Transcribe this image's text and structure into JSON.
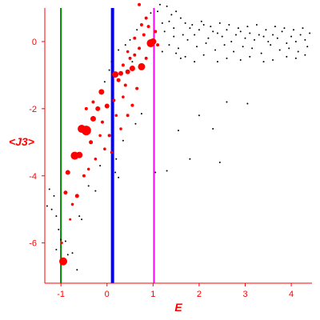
{
  "chart_data": {
    "type": "scatter",
    "title": "",
    "xlabel": "E",
    "ylabel": "<J3>",
    "xlim": [
      -1.35,
      4.45
    ],
    "ylim": [
      -7.2,
      1.0
    ],
    "x_ticks": [
      -1,
      0,
      1,
      2,
      3,
      4
    ],
    "x_tick_labels": [
      "-1",
      "0",
      "1",
      "2",
      "3",
      "4"
    ],
    "y_ticks": [
      0,
      -2,
      -4,
      -6
    ],
    "y_tick_labels": [
      "0",
      "-2",
      "-4",
      "-6"
    ],
    "grid": false,
    "colors": {
      "axis": "#ff0000",
      "labels": "#ff0000",
      "points_small": "#000000",
      "points_large": "#ff0000",
      "vline_green": "#008000",
      "vline_blue": "#0000ff",
      "vline_magenta": "#ff00ff"
    },
    "vertical_lines": [
      {
        "x": -1.0,
        "color": "#008000",
        "weight": "thin"
      },
      {
        "x": 0.12,
        "color": "#0000ff",
        "weight": "thick"
      },
      {
        "x": 1.02,
        "color": "#ff00ff",
        "weight": "thin"
      }
    ],
    "series": [
      {
        "color": "#ff0000",
        "marker": "circle",
        "points": [
          [
            -0.45,
            -2.65,
            6
          ],
          [
            -0.55,
            -2.6,
            5
          ],
          [
            -0.7,
            -3.4,
            5
          ],
          [
            -0.6,
            -3.38,
            4
          ],
          [
            -0.3,
            -2.3,
            3.5
          ],
          [
            -0.2,
            -2.0,
            3
          ],
          [
            -0.12,
            -1.5,
            3.5
          ],
          [
            0.0,
            -1.92,
            3
          ],
          [
            0.18,
            -0.98,
            4
          ],
          [
            0.3,
            -0.95,
            3
          ],
          [
            0.45,
            -0.9,
            3
          ],
          [
            0.55,
            -0.8,
            3.5
          ],
          [
            0.75,
            -0.75,
            4.5
          ],
          [
            0.95,
            -0.05,
            5
          ],
          [
            1.0,
            0.0,
            4
          ],
          [
            -0.95,
            -6.55,
            5
          ],
          [
            -0.85,
            -3.9,
            3
          ],
          [
            -0.9,
            -4.5,
            2.5
          ],
          [
            -0.65,
            -4.6,
            2.5
          ],
          [
            -0.5,
            -4.0,
            2
          ],
          [
            -0.35,
            -3.0,
            2.5
          ],
          [
            -0.1,
            -2.4,
            2
          ],
          [
            0.05,
            -2.8,
            2
          ],
          [
            0.15,
            -1.75,
            2
          ],
          [
            0.25,
            -1.15,
            2.5
          ],
          [
            0.4,
            -1.3,
            2
          ],
          [
            0.35,
            -0.7,
            2
          ],
          [
            0.5,
            -0.5,
            2
          ],
          [
            0.6,
            -0.4,
            2
          ],
          [
            0.7,
            -0.2,
            2
          ],
          [
            0.8,
            0.2,
            2
          ],
          [
            0.85,
            -0.5,
            2
          ],
          [
            0.65,
            -1.4,
            2
          ],
          [
            0.55,
            -1.9,
            2
          ],
          [
            0.45,
            -2.2,
            2
          ],
          [
            0.3,
            -2.6,
            1.8
          ],
          [
            0.2,
            -2.2,
            1.8
          ],
          [
            0.1,
            -3.3,
            1.8
          ],
          [
            -0.05,
            -3.2,
            1.8
          ],
          [
            -0.25,
            -3.5,
            1.8
          ],
          [
            -0.4,
            -3.8,
            1.8
          ],
          [
            -0.75,
            -4.85,
            1.8
          ],
          [
            -0.8,
            -5.3,
            1.5
          ],
          [
            -0.98,
            -6.0,
            1.5
          ],
          [
            0.9,
            0.45,
            2
          ],
          [
            0.75,
            0.5,
            2
          ],
          [
            0.85,
            0.7,
            2
          ],
          [
            0.7,
            1.1,
            2
          ],
          [
            1.05,
            0.3,
            2
          ],
          [
            1.1,
            -0.1,
            2
          ],
          [
            0.6,
            0.1,
            2
          ],
          [
            0.45,
            -0.3,
            1.8
          ],
          [
            -0.3,
            -1.8,
            2
          ],
          [
            -0.45,
            -2.0,
            2
          ],
          [
            -0.15,
            -2.8,
            1.8
          ],
          [
            0.35,
            -1.65,
            1.8
          ]
        ]
      },
      {
        "color": "#000000",
        "marker": "dot",
        "points": [
          [
            1.3,
            1.05
          ],
          [
            1.4,
            0.8
          ],
          [
            1.5,
            0.9
          ],
          [
            1.6,
            0.7
          ],
          [
            1.7,
            0.55
          ],
          [
            1.8,
            0.4
          ],
          [
            1.9,
            0.2
          ],
          [
            2.0,
            0.35
          ],
          [
            2.1,
            0.5
          ],
          [
            2.2,
            0.1
          ],
          [
            2.3,
            0.3
          ],
          [
            2.4,
            0.25
          ],
          [
            2.5,
            0.15
          ],
          [
            2.6,
            0.35
          ],
          [
            2.7,
            0.0
          ],
          [
            2.8,
            0.2
          ],
          [
            2.9,
            0.3
          ],
          [
            3.0,
            0.1
          ],
          [
            3.1,
            0.25
          ],
          [
            3.2,
            0.05
          ],
          [
            3.3,
            0.2
          ],
          [
            3.4,
            0.15
          ],
          [
            3.5,
            0.0
          ],
          [
            3.6,
            0.2
          ],
          [
            3.7,
            0.1
          ],
          [
            3.8,
            0.3
          ],
          [
            3.9,
            -0.05
          ],
          [
            4.0,
            0.15
          ],
          [
            4.1,
            0.0
          ],
          [
            4.2,
            0.2
          ],
          [
            4.3,
            0.05
          ],
          [
            4.4,
            0.25
          ],
          [
            1.35,
            -0.1
          ],
          [
            1.55,
            -0.2
          ],
          [
            1.75,
            0.05
          ],
          [
            1.95,
            -0.15
          ],
          [
            2.15,
            -0.05
          ],
          [
            2.35,
            -0.25
          ],
          [
            2.55,
            -0.1
          ],
          [
            2.75,
            -0.3
          ],
          [
            2.95,
            -0.15
          ],
          [
            3.15,
            -0.2
          ],
          [
            3.35,
            -0.35
          ],
          [
            3.55,
            -0.1
          ],
          [
            3.75,
            -0.25
          ],
          [
            3.95,
            -0.2
          ],
          [
            4.15,
            -0.3
          ],
          [
            4.35,
            -0.15
          ],
          [
            2.1,
            -0.4
          ],
          [
            2.6,
            -0.5
          ],
          [
            3.1,
            -0.45
          ],
          [
            3.6,
            -0.55
          ],
          [
            4.1,
            -0.5
          ],
          [
            1.6,
            -0.5
          ],
          [
            1.2,
            -0.3
          ],
          [
            1.25,
            0.3
          ],
          [
            1.45,
            0.4
          ],
          [
            1.65,
            0.2
          ],
          [
            1.85,
            0.5
          ],
          [
            2.05,
            0.6
          ],
          [
            2.25,
            0.45
          ],
          [
            2.45,
            0.55
          ],
          [
            2.65,
            0.5
          ],
          [
            2.85,
            0.4
          ],
          [
            3.05,
            0.45
          ],
          [
            3.25,
            0.5
          ],
          [
            3.45,
            0.35
          ],
          [
            3.65,
            0.45
          ],
          [
            3.85,
            0.4
          ],
          [
            4.05,
            0.35
          ],
          [
            4.25,
            0.4
          ],
          [
            2.6,
            -1.8
          ],
          [
            3.05,
            -1.85
          ],
          [
            2.0,
            -2.2
          ],
          [
            1.8,
            -3.5
          ],
          [
            2.45,
            -3.6
          ],
          [
            2.3,
            -2.6
          ],
          [
            1.55,
            -2.65
          ],
          [
            1.05,
            -3.9
          ],
          [
            1.3,
            -3.85
          ],
          [
            0.75,
            -2.15
          ],
          [
            0.62,
            -2.45
          ],
          [
            0.35,
            -2.95
          ],
          [
            0.2,
            -3.5
          ],
          [
            0.18,
            -3.9
          ],
          [
            0.25,
            -4.05
          ],
          [
            -0.6,
            -5.2
          ],
          [
            -0.55,
            -5.3
          ],
          [
            -0.4,
            -4.3
          ],
          [
            -0.25,
            -4.45
          ],
          [
            -0.15,
            -3.7
          ],
          [
            -1.0,
            -5.9
          ],
          [
            -1.2,
            -5.0
          ],
          [
            -1.3,
            -4.9
          ],
          [
            -1.1,
            -5.2
          ],
          [
            -1.05,
            -5.6
          ],
          [
            -1.15,
            -4.6
          ],
          [
            -1.25,
            -4.4
          ],
          [
            -0.9,
            -5.95
          ],
          [
            -0.85,
            -6.35
          ],
          [
            -0.65,
            -6.8
          ],
          [
            -0.75,
            -6.3
          ],
          [
            -1.1,
            -6.2
          ],
          [
            0.55,
            -0.6
          ],
          [
            0.5,
            0.05
          ],
          [
            0.65,
            0.35
          ],
          [
            0.95,
            0.85
          ],
          [
            1.15,
            1.1
          ],
          [
            1.2,
            0.55
          ],
          [
            1.1,
            0.9
          ],
          [
            0.4,
            -0.1
          ],
          [
            0.25,
            -0.25
          ],
          [
            0.1,
            -0.6
          ],
          [
            0.05,
            -0.85
          ],
          [
            -0.05,
            -1.2
          ],
          [
            1.35,
            0.6
          ],
          [
            1.45,
            0.15
          ],
          [
            1.5,
            -0.35
          ],
          [
            1.7,
            -0.45
          ],
          [
            1.9,
            -0.6
          ],
          [
            2.4,
            -0.6
          ],
          [
            2.9,
            -0.55
          ],
          [
            3.4,
            -0.6
          ],
          [
            3.9,
            -0.45
          ],
          [
            4.3,
            -0.4
          ]
        ]
      }
    ]
  }
}
